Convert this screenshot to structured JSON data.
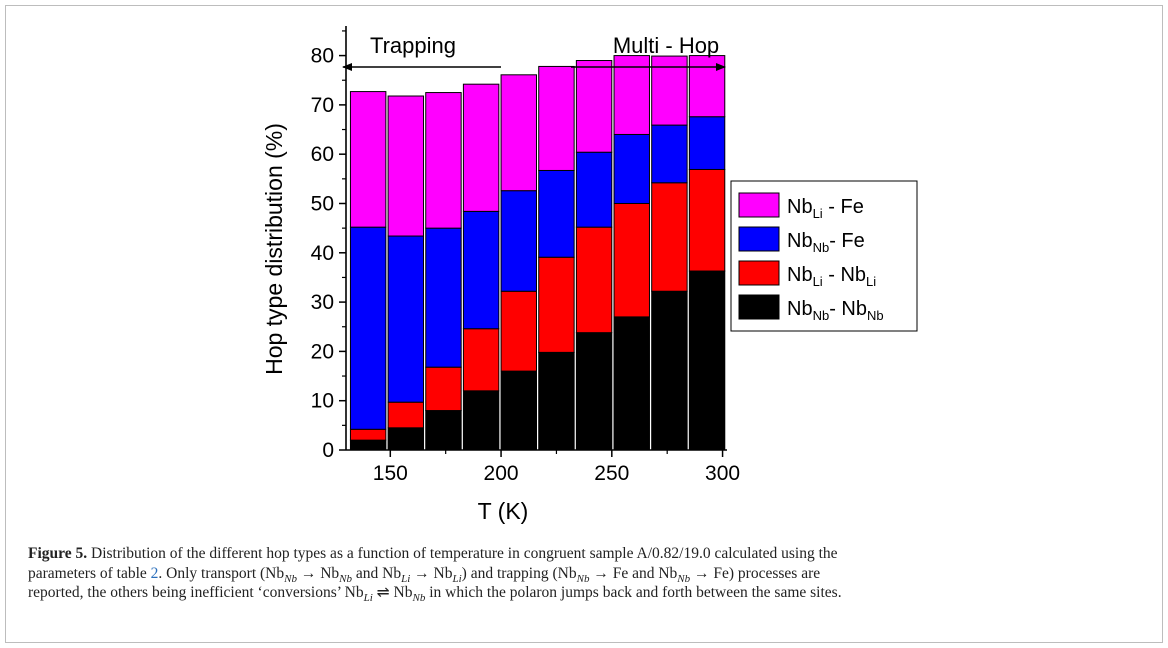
{
  "chart_data": {
    "type": "bar",
    "stacked": true,
    "x": [
      140,
      157,
      174,
      191,
      208,
      225,
      242,
      259,
      276,
      293
    ],
    "x_tick_labels": [
      "150",
      "200",
      "250",
      "300"
    ],
    "x_ticks": [
      150,
      200,
      250,
      300
    ],
    "xlim": [
      130,
      302
    ],
    "ylim": [
      0,
      86
    ],
    "y_ticks": [
      0,
      10,
      20,
      30,
      40,
      50,
      60,
      70,
      80
    ],
    "xlabel": "T (K)",
    "ylabel": "Hop type distribution (%)",
    "series": [
      {
        "name_base": "Nb",
        "name_sub": "Nb",
        "name_mid": "- Nb",
        "name_sub2": "Nb",
        "color": "#000000",
        "values": [
          2,
          4.5,
          8,
          12,
          16,
          19.8,
          23.8,
          27,
          32.2,
          36.3
        ]
      },
      {
        "name_base": "Nb",
        "name_sub": "Li",
        "name_mid": " - Nb",
        "name_sub2": "Li",
        "color": "#ff0000",
        "values": [
          2.2,
          5.2,
          8.8,
          12.6,
          16.2,
          19.3,
          21.4,
          23,
          22,
          20.6
        ]
      },
      {
        "name_base": "Nb",
        "name_sub": "Nb",
        "name_mid": "- Fe",
        "name_sub2": "",
        "color": "#0000ff",
        "values": [
          41,
          33.7,
          28.2,
          23.8,
          20.4,
          17.6,
          15.2,
          14,
          11.7,
          10.7
        ]
      },
      {
        "name_base": "Nb",
        "name_sub": "Li",
        "name_mid": " - Fe",
        "name_sub2": "",
        "color": "#ff00ff",
        "values": [
          27.5,
          28.4,
          27.5,
          25.8,
          23.5,
          21.1,
          18.6,
          16,
          14,
          12.4
        ]
      }
    ],
    "legend_position": "right",
    "annotations": [
      {
        "text": "Trapping",
        "arrow": "left"
      },
      {
        "text": "Multi - Hop",
        "arrow": "right"
      }
    ]
  },
  "caption": {
    "label": "Figure 5.",
    "line1": " Distribution of the different hop types as a function of temperature in congruent sample A/0.82/19.0 calculated using the",
    "line2_a": "parameters of table ",
    "table_ref": "2",
    "line2_b": ". Only transport (Nb",
    "sub_nb": "Nb",
    "sub_li": "Li",
    "arrow": " → ",
    "and": " and ",
    "trapping": ") and trapping (",
    "fe": "Fe",
    "processes_are": ") processes are",
    "line3": "reported, the others being inefficient ‘conversions’ Nb",
    "eq": " ⇌ ",
    "line3_end": " in which the polaron jumps back and forth between the same sites."
  }
}
